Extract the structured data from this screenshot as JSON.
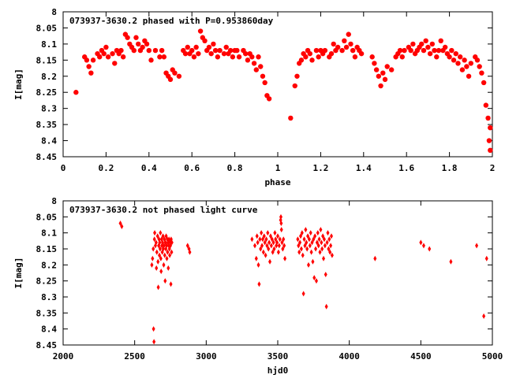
{
  "chart_data": [
    {
      "type": "scatter",
      "title": "073937-3630.2 phased with P=0.953860day",
      "xlabel": "phase",
      "ylabel": "I[mag]",
      "xlim": [
        0,
        2
      ],
      "ylim": [
        8.45,
        8.0
      ],
      "y_inverted": true,
      "xticks": [
        "0",
        "0.2",
        "0.4",
        "0.6",
        "0.8",
        "1",
        "1.2",
        "1.4",
        "1.6",
        "1.8",
        "2"
      ],
      "xtick_values": [
        0,
        0.2,
        0.4,
        0.6,
        0.8,
        1.0,
        1.2,
        1.4,
        1.6,
        1.8,
        2.0
      ],
      "yticks": [
        "8",
        "8.05",
        "8.1",
        "8.15",
        "8.2",
        "8.25",
        "8.3",
        "8.35",
        "8.4",
        "8.45"
      ],
      "ytick_values": [
        8.0,
        8.05,
        8.1,
        8.15,
        8.2,
        8.25,
        8.3,
        8.35,
        8.4,
        8.45
      ],
      "marker_color": "#ff0000",
      "marker": "filled-circle",
      "points": [
        [
          0.06,
          8.25
        ],
        [
          0.1,
          8.14
        ],
        [
          0.11,
          8.15
        ],
        [
          0.12,
          8.17
        ],
        [
          0.13,
          8.19
        ],
        [
          0.14,
          8.15
        ],
        [
          0.16,
          8.13
        ],
        [
          0.17,
          8.14
        ],
        [
          0.18,
          8.12
        ],
        [
          0.19,
          8.13
        ],
        [
          0.2,
          8.11
        ],
        [
          0.21,
          8.14
        ],
        [
          0.23,
          8.13
        ],
        [
          0.24,
          8.16
        ],
        [
          0.25,
          8.12
        ],
        [
          0.26,
          8.13
        ],
        [
          0.27,
          8.12
        ],
        [
          0.28,
          8.14
        ],
        [
          0.29,
          8.07
        ],
        [
          0.3,
          8.08
        ],
        [
          0.31,
          8.1
        ],
        [
          0.32,
          8.11
        ],
        [
          0.33,
          8.12
        ],
        [
          0.34,
          8.08
        ],
        [
          0.35,
          8.1
        ],
        [
          0.36,
          8.12
        ],
        [
          0.37,
          8.11
        ],
        [
          0.38,
          8.09
        ],
        [
          0.39,
          8.1
        ],
        [
          0.4,
          8.12
        ],
        [
          0.41,
          8.15
        ],
        [
          0.43,
          8.12
        ],
        [
          0.45,
          8.14
        ],
        [
          0.46,
          8.12
        ],
        [
          0.47,
          8.14
        ],
        [
          0.48,
          8.19
        ],
        [
          0.49,
          8.2
        ],
        [
          0.5,
          8.21
        ],
        [
          0.51,
          8.18
        ],
        [
          0.52,
          8.19
        ],
        [
          0.54,
          8.2
        ],
        [
          0.56,
          8.12
        ],
        [
          0.57,
          8.13
        ],
        [
          0.58,
          8.11
        ],
        [
          0.59,
          8.13
        ],
        [
          0.6,
          8.12
        ],
        [
          0.61,
          8.14
        ],
        [
          0.62,
          8.11
        ],
        [
          0.63,
          8.13
        ],
        [
          0.64,
          8.06
        ],
        [
          0.65,
          8.08
        ],
        [
          0.66,
          8.09
        ],
        [
          0.67,
          8.12
        ],
        [
          0.68,
          8.11
        ],
        [
          0.69,
          8.13
        ],
        [
          0.7,
          8.1
        ],
        [
          0.71,
          8.12
        ],
        [
          0.72,
          8.14
        ],
        [
          0.73,
          8.12
        ],
        [
          0.75,
          8.13
        ],
        [
          0.76,
          8.11
        ],
        [
          0.77,
          8.13
        ],
        [
          0.78,
          8.12
        ],
        [
          0.79,
          8.14
        ],
        [
          0.8,
          8.12
        ],
        [
          0.81,
          8.12
        ],
        [
          0.82,
          8.14
        ],
        [
          0.84,
          8.12
        ],
        [
          0.85,
          8.13
        ],
        [
          0.86,
          8.15
        ],
        [
          0.87,
          8.13
        ],
        [
          0.88,
          8.14
        ],
        [
          0.89,
          8.16
        ],
        [
          0.9,
          8.18
        ],
        [
          0.91,
          8.14
        ],
        [
          0.92,
          8.17
        ],
        [
          0.93,
          8.2
        ],
        [
          0.94,
          8.22
        ],
        [
          0.95,
          8.26
        ],
        [
          0.96,
          8.27
        ],
        [
          1.06,
          8.33
        ],
        [
          1.08,
          8.23
        ],
        [
          1.09,
          8.2
        ],
        [
          1.1,
          8.16
        ],
        [
          1.11,
          8.15
        ],
        [
          1.12,
          8.13
        ],
        [
          1.13,
          8.14
        ],
        [
          1.14,
          8.12
        ],
        [
          1.15,
          8.13
        ],
        [
          1.16,
          8.15
        ],
        [
          1.18,
          8.12
        ],
        [
          1.19,
          8.14
        ],
        [
          1.2,
          8.12
        ],
        [
          1.21,
          8.13
        ],
        [
          1.22,
          8.12
        ],
        [
          1.24,
          8.14
        ],
        [
          1.25,
          8.13
        ],
        [
          1.26,
          8.1
        ],
        [
          1.27,
          8.12
        ],
        [
          1.28,
          8.11
        ],
        [
          1.3,
          8.12
        ],
        [
          1.31,
          8.09
        ],
        [
          1.32,
          8.11
        ],
        [
          1.33,
          8.07
        ],
        [
          1.34,
          8.1
        ],
        [
          1.35,
          8.12
        ],
        [
          1.36,
          8.14
        ],
        [
          1.37,
          8.11
        ],
        [
          1.38,
          8.12
        ],
        [
          1.39,
          8.13
        ],
        [
          1.44,
          8.14
        ],
        [
          1.45,
          8.16
        ],
        [
          1.46,
          8.18
        ],
        [
          1.47,
          8.2
        ],
        [
          1.48,
          8.23
        ],
        [
          1.49,
          8.19
        ],
        [
          1.5,
          8.21
        ],
        [
          1.51,
          8.17
        ],
        [
          1.53,
          8.18
        ],
        [
          1.55,
          8.14
        ],
        [
          1.56,
          8.13
        ],
        [
          1.57,
          8.12
        ],
        [
          1.58,
          8.14
        ],
        [
          1.59,
          8.12
        ],
        [
          1.61,
          8.11
        ],
        [
          1.62,
          8.12
        ],
        [
          1.63,
          8.1
        ],
        [
          1.64,
          8.13
        ],
        [
          1.65,
          8.12
        ],
        [
          1.66,
          8.11
        ],
        [
          1.67,
          8.1
        ],
        [
          1.68,
          8.12
        ],
        [
          1.69,
          8.09
        ],
        [
          1.7,
          8.11
        ],
        [
          1.71,
          8.13
        ],
        [
          1.72,
          8.1
        ],
        [
          1.73,
          8.12
        ],
        [
          1.74,
          8.14
        ],
        [
          1.75,
          8.12
        ],
        [
          1.76,
          8.09
        ],
        [
          1.77,
          8.12
        ],
        [
          1.78,
          8.11
        ],
        [
          1.79,
          8.13
        ],
        [
          1.8,
          8.14
        ],
        [
          1.81,
          8.12
        ],
        [
          1.82,
          8.15
        ],
        [
          1.83,
          8.13
        ],
        [
          1.84,
          8.16
        ],
        [
          1.85,
          8.14
        ],
        [
          1.86,
          8.18
        ],
        [
          1.87,
          8.15
        ],
        [
          1.88,
          8.17
        ],
        [
          1.89,
          8.2
        ],
        [
          1.9,
          8.16
        ],
        [
          1.92,
          8.14
        ],
        [
          1.93,
          8.15
        ],
        [
          1.94,
          8.17
        ],
        [
          1.95,
          8.19
        ],
        [
          1.96,
          8.22
        ],
        [
          1.97,
          8.29
        ],
        [
          1.98,
          8.33
        ],
        [
          1.99,
          8.36
        ],
        [
          1.985,
          8.4
        ],
        [
          1.99,
          8.43
        ]
      ]
    },
    {
      "type": "scatter",
      "title": "073937-3630.2 not phased light curve",
      "xlabel": "hjd0",
      "ylabel": "I[mag]",
      "xlim": [
        2000,
        5000
      ],
      "ylim": [
        8.45,
        8.0
      ],
      "y_inverted": true,
      "xticks": [
        "2000",
        "2500",
        "3000",
        "3500",
        "4000",
        "4500",
        "5000"
      ],
      "xtick_values": [
        2000,
        2500,
        3000,
        3500,
        4000,
        4500,
        5000
      ],
      "yticks": [
        "8",
        "8.05",
        "8.1",
        "8.15",
        "8.2",
        "8.25",
        "8.3",
        "8.35",
        "8.4",
        "8.45"
      ],
      "ytick_values": [
        8.0,
        8.05,
        8.1,
        8.15,
        8.2,
        8.25,
        8.3,
        8.35,
        8.4,
        8.45
      ],
      "marker_color": "#ff0000",
      "marker": "filled-diamond",
      "points": [
        [
          2400,
          8.07
        ],
        [
          2410,
          8.08
        ],
        [
          2620,
          8.2
        ],
        [
          2625,
          8.18
        ],
        [
          2630,
          8.15
        ],
        [
          2632,
          8.4
        ],
        [
          2635,
          8.44
        ],
        [
          2638,
          8.12
        ],
        [
          2640,
          8.1
        ],
        [
          2645,
          8.14
        ],
        [
          2650,
          8.13
        ],
        [
          2652,
          8.21
        ],
        [
          2655,
          8.16
        ],
        [
          2660,
          8.11
        ],
        [
          2663,
          8.19
        ],
        [
          2665,
          8.27
        ],
        [
          2668,
          8.14
        ],
        [
          2670,
          8.12
        ],
        [
          2673,
          8.17
        ],
        [
          2675,
          8.13
        ],
        [
          2678,
          8.15
        ],
        [
          2680,
          8.1
        ],
        [
          2683,
          8.18
        ],
        [
          2685,
          8.22
        ],
        [
          2688,
          8.12
        ],
        [
          2690,
          8.14
        ],
        [
          2693,
          8.16
        ],
        [
          2695,
          8.13
        ],
        [
          2698,
          8.11
        ],
        [
          2700,
          8.15
        ],
        [
          2703,
          8.2
        ],
        [
          2705,
          8.14
        ],
        [
          2708,
          8.12
        ],
        [
          2710,
          8.17
        ],
        [
          2713,
          8.25
        ],
        [
          2715,
          8.13
        ],
        [
          2718,
          8.15
        ],
        [
          2720,
          8.11
        ],
        [
          2723,
          8.14
        ],
        [
          2725,
          8.18
        ],
        [
          2728,
          8.12
        ],
        [
          2730,
          8.16
        ],
        [
          2733,
          8.13
        ],
        [
          2735,
          8.21
        ],
        [
          2738,
          8.14
        ],
        [
          2740,
          8.12
        ],
        [
          2743,
          8.15
        ],
        [
          2745,
          8.17
        ],
        [
          2748,
          8.13
        ],
        [
          2750,
          8.14
        ],
        [
          2753,
          8.26
        ],
        [
          2755,
          8.12
        ],
        [
          2758,
          8.16
        ],
        [
          2760,
          8.13
        ],
        [
          2870,
          8.14
        ],
        [
          2880,
          8.15
        ],
        [
          2885,
          8.16
        ],
        [
          3320,
          8.12
        ],
        [
          3340,
          8.14
        ],
        [
          3350,
          8.18
        ],
        [
          3355,
          8.11
        ],
        [
          3360,
          8.13
        ],
        [
          3365,
          8.2
        ],
        [
          3370,
          8.26
        ],
        [
          3375,
          8.12
        ],
        [
          3380,
          8.15
        ],
        [
          3385,
          8.1
        ],
        [
          3390,
          8.14
        ],
        [
          3395,
          8.12
        ],
        [
          3400,
          8.16
        ],
        [
          3405,
          8.11
        ],
        [
          3410,
          8.13
        ],
        [
          3415,
          8.17
        ],
        [
          3420,
          8.12
        ],
        [
          3425,
          8.14
        ],
        [
          3430,
          8.1
        ],
        [
          3435,
          8.15
        ],
        [
          3440,
          8.13
        ],
        [
          3445,
          8.19
        ],
        [
          3450,
          8.11
        ],
        [
          3455,
          8.14
        ],
        [
          3460,
          8.12
        ],
        [
          3465,
          8.16
        ],
        [
          3470,
          8.13
        ],
        [
          3475,
          8.15
        ],
        [
          3480,
          8.1
        ],
        [
          3485,
          8.12
        ],
        [
          3490,
          8.14
        ],
        [
          3495,
          8.13
        ],
        [
          3500,
          8.11
        ],
        [
          3505,
          8.16
        ],
        [
          3510,
          8.14
        ],
        [
          3515,
          8.12
        ],
        [
          3520,
          8.06
        ],
        [
          3522,
          8.05
        ],
        [
          3524,
          8.07
        ],
        [
          3526,
          8.09
        ],
        [
          3530,
          8.13
        ],
        [
          3535,
          8.15
        ],
        [
          3540,
          8.12
        ],
        [
          3545,
          8.14
        ],
        [
          3550,
          8.18
        ],
        [
          3640,
          8.12
        ],
        [
          3645,
          8.14
        ],
        [
          3650,
          8.16
        ],
        [
          3655,
          8.13
        ],
        [
          3660,
          8.11
        ],
        [
          3665,
          8.15
        ],
        [
          3670,
          8.1
        ],
        [
          3675,
          8.17
        ],
        [
          3680,
          8.29
        ],
        [
          3685,
          8.12
        ],
        [
          3690,
          8.14
        ],
        [
          3695,
          8.09
        ],
        [
          3700,
          8.13
        ],
        [
          3705,
          8.15
        ],
        [
          3710,
          8.11
        ],
        [
          3715,
          8.2
        ],
        [
          3720,
          8.12
        ],
        [
          3725,
          8.14
        ],
        [
          3730,
          8.1
        ],
        [
          3735,
          8.16
        ],
        [
          3740,
          8.13
        ],
        [
          3745,
          8.19
        ],
        [
          3750,
          8.12
        ],
        [
          3755,
          8.24
        ],
        [
          3760,
          8.11
        ],
        [
          3765,
          8.15
        ],
        [
          3770,
          8.25
        ],
        [
          3775,
          8.13
        ],
        [
          3780,
          8.1
        ],
        [
          3785,
          8.14
        ],
        [
          3790,
          8.12
        ],
        [
          3795,
          8.16
        ],
        [
          3800,
          8.09
        ],
        [
          3805,
          8.13
        ],
        [
          3810,
          8.15
        ],
        [
          3815,
          8.11
        ],
        [
          3820,
          8.18
        ],
        [
          3825,
          8.12
        ],
        [
          3830,
          8.14
        ],
        [
          3835,
          8.23
        ],
        [
          3840,
          8.33
        ],
        [
          3845,
          8.13
        ],
        [
          3850,
          8.1
        ],
        [
          3855,
          8.15
        ],
        [
          3860,
          8.12
        ],
        [
          3865,
          8.16
        ],
        [
          3870,
          8.14
        ],
        [
          3875,
          8.11
        ],
        [
          3880,
          8.17
        ],
        [
          4180,
          8.18
        ],
        [
          4500,
          8.13
        ],
        [
          4520,
          8.14
        ],
        [
          4560,
          8.15
        ],
        [
          4710,
          8.19
        ],
        [
          4890,
          8.14
        ],
        [
          4940,
          8.36
        ],
        [
          4960,
          8.18
        ]
      ]
    }
  ]
}
